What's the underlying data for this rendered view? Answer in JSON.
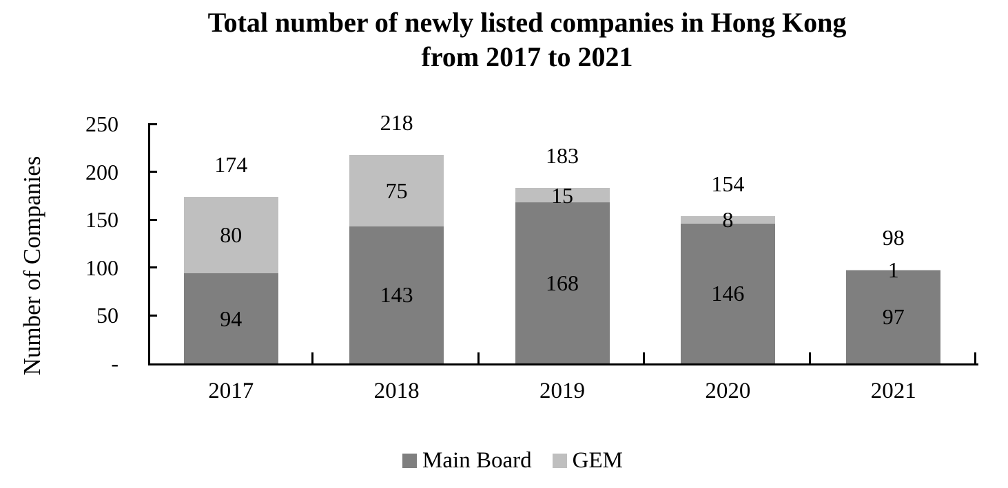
{
  "chart_data": {
    "type": "bar",
    "stacked": true,
    "title": "Total number of newly listed companies in Hong Kong from 2017 to 2021",
    "title_lines": [
      "Total number of newly listed companies in Hong Kong",
      "from 2017 to 2021"
    ],
    "categories": [
      "2017",
      "2018",
      "2019",
      "2020",
      "2021"
    ],
    "series": [
      {
        "name": "Main Board",
        "values": [
          94,
          143,
          168,
          146,
          97
        ],
        "color": "#7F7F7F"
      },
      {
        "name": "GEM",
        "values": [
          80,
          75,
          15,
          8,
          1
        ],
        "color": "#BFBFBF"
      }
    ],
    "totals": [
      174,
      218,
      183,
      154,
      98
    ],
    "xlabel": "",
    "ylabel": "Number of Companies",
    "ylim": [
      0,
      250
    ],
    "y_tick_labels": [
      "250",
      "200",
      "150",
      "100",
      "50",
      "-"
    ],
    "y_tick_values": [
      250,
      200,
      150,
      100,
      50,
      0
    ],
    "grid": false,
    "legend_position": "bottom",
    "axis_color": "#000000",
    "label_color": "#000000",
    "background_color": "#FFFFFF"
  }
}
